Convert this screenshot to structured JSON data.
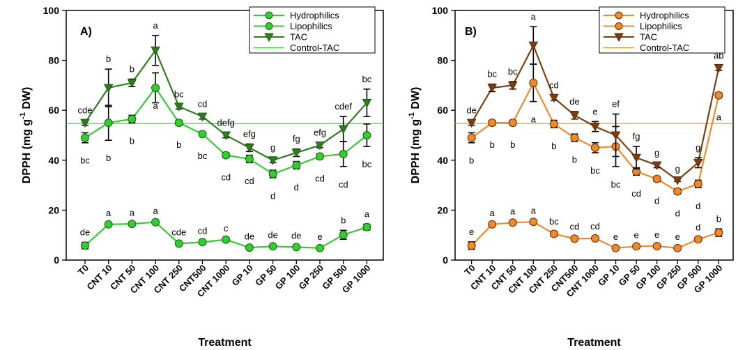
{
  "figure": {
    "xlabel": "Treatment",
    "ylabel_main": "DPPH (mg g",
    "ylabel_sup": "-1",
    "ylabel_end": " DW)"
  },
  "chart_data": [
    {
      "type": "line",
      "panel_label": "A)",
      "categories": [
        "T0",
        "CNT 10",
        "CNT 50",
        "CNT 100",
        "CNT 250",
        "CNT500",
        "CNT 1000",
        "GP 10",
        "GP 50",
        "GP 100",
        "GP 250",
        "GP 500",
        "GP 1000"
      ],
      "ylim": [
        0,
        100
      ],
      "yticks": [
        0,
        20,
        40,
        60,
        80,
        100
      ],
      "xlabel": "Treatment",
      "ylabel": "DPPH (mg g-1 DW)",
      "grid": false,
      "legend_position": "top-right",
      "colors": {
        "light": "#33cc33",
        "dark": "#2e7d1f",
        "stroke": "#1a5c0f"
      },
      "control_tac": 54.7,
      "series": [
        {
          "name": "Hydrophilics",
          "marker": "circle",
          "color_key": "light",
          "values": [
            49,
            55,
            56.5,
            69,
            55,
            50.5,
            42,
            40.5,
            34.5,
            38,
            41.5,
            42.5,
            50
          ],
          "errors": [
            2,
            7,
            1.5,
            6,
            1,
            0.5,
            1,
            1.5,
            1.5,
            1.5,
            1,
            5,
            4.5
          ],
          "letters": [
            "bc",
            "b",
            "b",
            "a",
            "b",
            "bc",
            "cd",
            "cd",
            "d",
            "d",
            "cd",
            "cd",
            "bc"
          ]
        },
        {
          "name": "Lipophilics",
          "marker": "circle",
          "color_key": "light",
          "values": [
            5.8,
            14.3,
            14.5,
            15.2,
            6.6,
            7.2,
            8.2,
            5,
            5.5,
            5.2,
            4.8,
            10.1,
            13.2
          ],
          "errors": [
            1.3,
            0.5,
            0.5,
            0.5,
            0.5,
            0.5,
            0.5,
            0.5,
            0.5,
            0.5,
            0.5,
            1.8,
            1.2
          ],
          "letters": [
            "de",
            "a",
            "a",
            "a",
            "cde",
            "cd",
            "c",
            "de",
            "de",
            "de",
            "e",
            "b",
            "a"
          ]
        },
        {
          "name": "TAC",
          "marker": "triangle-down",
          "color_key": "dark",
          "values": [
            55,
            69,
            71,
            84,
            61.5,
            57.5,
            50,
            45,
            40,
            43,
            46,
            52.5,
            63
          ],
          "errors": [
            1,
            7.5,
            1.5,
            6,
            1,
            1,
            1,
            1.5,
            1,
            1.5,
            1,
            5,
            5.5
          ],
          "letters": [
            "cde",
            "b",
            "b",
            "a",
            "bc",
            "cd",
            "defg",
            "efg",
            "g",
            "fg",
            "efg",
            "cdef",
            "bc"
          ]
        },
        {
          "name": "Control-TAC",
          "marker": "line",
          "color_key": "light"
        }
      ]
    },
    {
      "type": "line",
      "panel_label": "B)",
      "categories": [
        "T0",
        "CNT 10",
        "CNT 50",
        "CNT 100",
        "CNT 250",
        "CNT500",
        "CNT 1000",
        "GP 10",
        "GP 50",
        "GP 100",
        "GP 250",
        "GP 500",
        "GP 1000"
      ],
      "ylim": [
        0,
        100
      ],
      "yticks": [
        0,
        20,
        40,
        60,
        80,
        100
      ],
      "xlabel": "Treatment",
      "ylabel": "DPPH (mg g-1 DW)",
      "grid": false,
      "legend_position": "top-right",
      "colors": {
        "light": "#ee8a2a",
        "dark": "#7a3f10",
        "stroke": "#5c2a08"
      },
      "control_tac": 54.7,
      "series": [
        {
          "name": "Hydrophilics",
          "marker": "circle",
          "color_key": "light",
          "values": [
            49,
            55,
            55,
            71,
            54.5,
            49,
            45,
            45.5,
            35.5,
            32.5,
            27.5,
            30.5,
            66
          ],
          "errors": [
            2,
            1,
            1,
            7.5,
            1.5,
            1.5,
            2,
            8,
            1.5,
            1,
            1,
            1.5,
            1
          ],
          "letters": [
            "b",
            "b",
            "b",
            "a",
            "b",
            "b",
            "bc",
            "bc",
            "cd",
            "d",
            "d",
            "d",
            "a"
          ]
        },
        {
          "name": "Lipophilics",
          "marker": "circle",
          "color_key": "light",
          "values": [
            5.8,
            14.3,
            15,
            15.3,
            10.5,
            8.6,
            8.7,
            4.8,
            5.5,
            5.6,
            4.8,
            8.3,
            11
          ],
          "errors": [
            1.5,
            0.5,
            0.5,
            0.5,
            1,
            0.8,
            0.8,
            0.5,
            0.5,
            0.5,
            0.5,
            0.8,
            1.5
          ],
          "letters": [
            "e",
            "a",
            "a",
            "a",
            "bc",
            "cd",
            "cd",
            "e",
            "e",
            "e",
            "e",
            "d",
            "b"
          ]
        },
        {
          "name": "TAC",
          "marker": "triangle-down",
          "color_key": "dark",
          "values": [
            55,
            69,
            70,
            86,
            65,
            58,
            53.5,
            50,
            41,
            38,
            32,
            39,
            77
          ],
          "errors": [
            1,
            1.5,
            1.5,
            7.5,
            1,
            1.5,
            2,
            8.5,
            4.5,
            1,
            0.5,
            2,
            1
          ],
          "letters": [
            "de",
            "bc",
            "bc",
            "a",
            "cd",
            "de",
            "e",
            "ef",
            "fg",
            "g",
            "g",
            "g",
            "ab"
          ]
        },
        {
          "name": "Control-TAC",
          "marker": "line",
          "color_key": "light"
        }
      ]
    }
  ]
}
